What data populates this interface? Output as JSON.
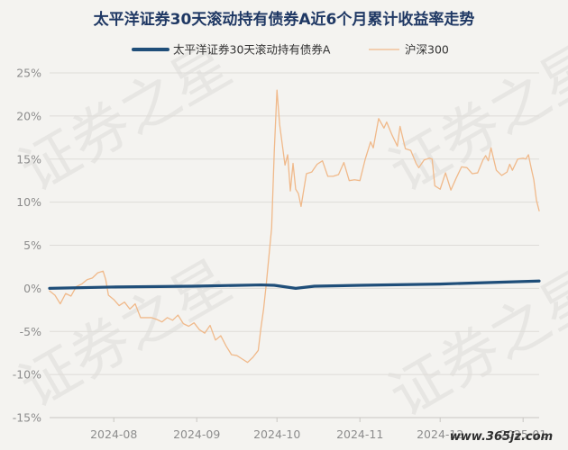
{
  "chart_data": {
    "type": "line",
    "title": "太平洋证券30天滚动持有债券A近6个月累计收益率走势",
    "ylim": [
      -15,
      25
    ],
    "y_ticks": [
      "25%",
      "20%",
      "15%",
      "10%",
      "5%",
      "0%",
      "-5%",
      "-10%",
      "-15%"
    ],
    "y_tick_values": [
      25,
      20,
      15,
      10,
      5,
      0,
      -5,
      -10,
      -15
    ],
    "x_range": [
      "2024-07-08",
      "2025-01-07"
    ],
    "x_ticks": [
      {
        "label": "2024-08",
        "date": "2024-08-01"
      },
      {
        "label": "2024-09",
        "date": "2024-09-01"
      },
      {
        "label": "2024-10",
        "date": "2024-10-01"
      },
      {
        "label": "2024-11",
        "date": "2024-11-01"
      },
      {
        "label": "2024-12",
        "date": "2024-12-01"
      },
      {
        "label": "2025-01",
        "date": "2025-01-01"
      }
    ],
    "legend_position": "top-center",
    "grid": true,
    "series": [
      {
        "name": "太平洋证券30天滚动持有债券A",
        "color": "#1f4e79",
        "points": [
          [
            "2024-07-08",
            0.0
          ],
          [
            "2024-07-31",
            0.15
          ],
          [
            "2024-08-31",
            0.25
          ],
          [
            "2024-09-25",
            0.4
          ],
          [
            "2024-09-30",
            0.35
          ],
          [
            "2024-10-08",
            0.0
          ],
          [
            "2024-10-15",
            0.25
          ],
          [
            "2024-11-01",
            0.35
          ],
          [
            "2024-12-01",
            0.5
          ],
          [
            "2025-01-07",
            0.85
          ]
        ]
      },
      {
        "name": "沪深300",
        "color": "#f0b98a",
        "points": [
          [
            "2024-07-08",
            -0.3
          ],
          [
            "2024-07-10",
            -0.8
          ],
          [
            "2024-07-12",
            -1.8
          ],
          [
            "2024-07-14",
            -0.6
          ],
          [
            "2024-07-16",
            -0.9
          ],
          [
            "2024-07-18",
            0.2
          ],
          [
            "2024-07-20",
            0.5
          ],
          [
            "2024-07-22",
            1.0
          ],
          [
            "2024-07-24",
            1.2
          ],
          [
            "2024-07-26",
            1.8
          ],
          [
            "2024-07-28",
            2.0
          ],
          [
            "2024-07-29",
            1.0
          ],
          [
            "2024-07-30",
            -0.8
          ],
          [
            "2024-08-01",
            -1.3
          ],
          [
            "2024-08-03",
            -2.0
          ],
          [
            "2024-08-05",
            -1.6
          ],
          [
            "2024-08-07",
            -2.4
          ],
          [
            "2024-08-09",
            -1.8
          ],
          [
            "2024-08-11",
            -3.4
          ],
          [
            "2024-08-13",
            -3.4
          ],
          [
            "2024-08-15",
            -3.4
          ],
          [
            "2024-08-17",
            -3.6
          ],
          [
            "2024-08-19",
            -3.9
          ],
          [
            "2024-08-21",
            -3.4
          ],
          [
            "2024-08-23",
            -3.7
          ],
          [
            "2024-08-25",
            -3.1
          ],
          [
            "2024-08-27",
            -4.1
          ],
          [
            "2024-08-29",
            -4.4
          ],
          [
            "2024-08-31",
            -4.0
          ],
          [
            "2024-09-02",
            -4.8
          ],
          [
            "2024-09-04",
            -5.2
          ],
          [
            "2024-09-06",
            -4.3
          ],
          [
            "2024-09-08",
            -6.0
          ],
          [
            "2024-09-10",
            -5.5
          ],
          [
            "2024-09-12",
            -6.7
          ],
          [
            "2024-09-14",
            -7.7
          ],
          [
            "2024-09-16",
            -7.8
          ],
          [
            "2024-09-18",
            -8.2
          ],
          [
            "2024-09-20",
            -8.6
          ],
          [
            "2024-09-22",
            -8.0
          ],
          [
            "2024-09-24",
            -7.2
          ],
          [
            "2024-09-25",
            -4.6
          ],
          [
            "2024-09-26",
            -2.4
          ],
          [
            "2024-09-27",
            0.5
          ],
          [
            "2024-09-29",
            7.0
          ],
          [
            "2024-09-30",
            16.0
          ],
          [
            "2024-10-01",
            23.0
          ],
          [
            "2024-10-02",
            19.0
          ],
          [
            "2024-10-04",
            14.3
          ],
          [
            "2024-10-05",
            15.5
          ],
          [
            "2024-10-06",
            11.3
          ],
          [
            "2024-10-07",
            14.5
          ],
          [
            "2024-10-08",
            11.5
          ],
          [
            "2024-10-09",
            11.0
          ],
          [
            "2024-10-10",
            9.5
          ],
          [
            "2024-10-12",
            13.3
          ],
          [
            "2024-10-14",
            13.5
          ],
          [
            "2024-10-16",
            14.4
          ],
          [
            "2024-10-18",
            14.8
          ],
          [
            "2024-10-20",
            13.0
          ],
          [
            "2024-10-22",
            13.0
          ],
          [
            "2024-10-24",
            13.2
          ],
          [
            "2024-10-26",
            14.6
          ],
          [
            "2024-10-28",
            12.5
          ],
          [
            "2024-10-30",
            12.6
          ],
          [
            "2024-11-01",
            12.5
          ],
          [
            "2024-11-03",
            15.0
          ],
          [
            "2024-11-05",
            17.0
          ],
          [
            "2024-11-06",
            16.3
          ],
          [
            "2024-11-08",
            19.7
          ],
          [
            "2024-11-10",
            18.6
          ],
          [
            "2024-11-11",
            19.3
          ],
          [
            "2024-11-13",
            17.8
          ],
          [
            "2024-11-15",
            16.5
          ],
          [
            "2024-11-16",
            18.8
          ],
          [
            "2024-11-18",
            16.2
          ],
          [
            "2024-11-20",
            16.0
          ],
          [
            "2024-11-22",
            14.5
          ],
          [
            "2024-11-23",
            14.0
          ],
          [
            "2024-11-25",
            14.9
          ],
          [
            "2024-11-27",
            15.1
          ],
          [
            "2024-11-28",
            15.0
          ],
          [
            "2024-11-29",
            11.9
          ],
          [
            "2024-12-01",
            11.5
          ],
          [
            "2024-12-03",
            13.4
          ],
          [
            "2024-12-05",
            11.4
          ],
          [
            "2024-12-07",
            12.8
          ],
          [
            "2024-12-09",
            14.1
          ],
          [
            "2024-12-11",
            14.0
          ],
          [
            "2024-12-13",
            13.3
          ],
          [
            "2024-12-15",
            13.4
          ],
          [
            "2024-12-17",
            14.9
          ],
          [
            "2024-12-18",
            15.4
          ],
          [
            "2024-12-19",
            14.8
          ],
          [
            "2024-12-20",
            16.3
          ],
          [
            "2024-12-22",
            13.7
          ],
          [
            "2024-12-24",
            13.1
          ],
          [
            "2024-12-26",
            13.5
          ],
          [
            "2024-12-27",
            14.4
          ],
          [
            "2024-12-28",
            13.7
          ],
          [
            "2024-12-30",
            15.0
          ],
          [
            "2025-01-01",
            15.1
          ],
          [
            "2025-01-02",
            15.0
          ],
          [
            "2025-01-03",
            15.5
          ],
          [
            "2025-01-04",
            14.0
          ],
          [
            "2025-01-05",
            12.6
          ],
          [
            "2025-01-06",
            10.2
          ],
          [
            "2025-01-07",
            9.0
          ]
        ]
      }
    ]
  },
  "watermark": {
    "text": "证券之星",
    "site": "www.365jz.com"
  },
  "style": {
    "background": "#f4f3f0",
    "grid_color": "#dedcd8",
    "axis_text_color": "#8c8c8c",
    "title_color": "#1f3864",
    "legend_text_color": "#333333",
    "watermark_color": "#e7e6e3"
  }
}
